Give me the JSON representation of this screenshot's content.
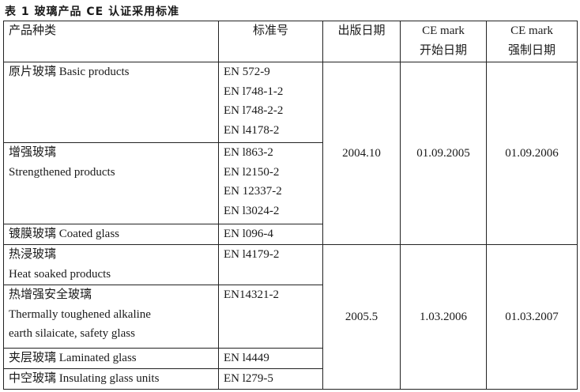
{
  "title": "表 1  玻璃产品 CE 认证采用标准",
  "headers": {
    "product": "产品种类",
    "standard": "标准号",
    "published": "出版日期",
    "ce_start": [
      "CE mark",
      "开始日期"
    ],
    "ce_mandatory": [
      "CE mark",
      "强制日期"
    ]
  },
  "rows": [
    {
      "product": [
        "原片玻璃 Basic products"
      ],
      "standards": [
        "EN 572-9",
        "EN l748-1-2",
        "EN l748-2-2",
        "EN l4178-2"
      ]
    },
    {
      "product": [
        "增强玻璃",
        "Strengthened products"
      ],
      "standards": [
        "EN l863-2",
        "EN l2150-2",
        "EN 12337-2",
        "EN l3024-2"
      ]
    },
    {
      "product": [
        "镀膜玻璃 Coated glass"
      ],
      "standards": [
        "EN l096-4"
      ]
    },
    {
      "product": [
        "热浸玻璃",
        "Heat soaked products"
      ],
      "standards": [
        "EN l4179-2"
      ]
    },
    {
      "product": [
        "热增强安全玻璃",
        "Thermally toughened alkaline",
        "earth silaicate, safety glass"
      ],
      "standards": [
        "EN14321-2"
      ]
    },
    {
      "product": [
        "夹层玻璃 Laminated glass"
      ],
      "standards": [
        "EN l4449"
      ]
    },
    {
      "product": [
        "中空玻璃 Insulating glass units"
      ],
      "standards": [
        "EN l279-5"
      ]
    }
  ],
  "groups": [
    {
      "published": "2004.10",
      "ce_start": "01.09.2005",
      "ce_mandatory": "01.09.2006"
    },
    {
      "published": "2005.5",
      "ce_start": "1.03.2006",
      "ce_mandatory": "01.03.2007"
    }
  ]
}
